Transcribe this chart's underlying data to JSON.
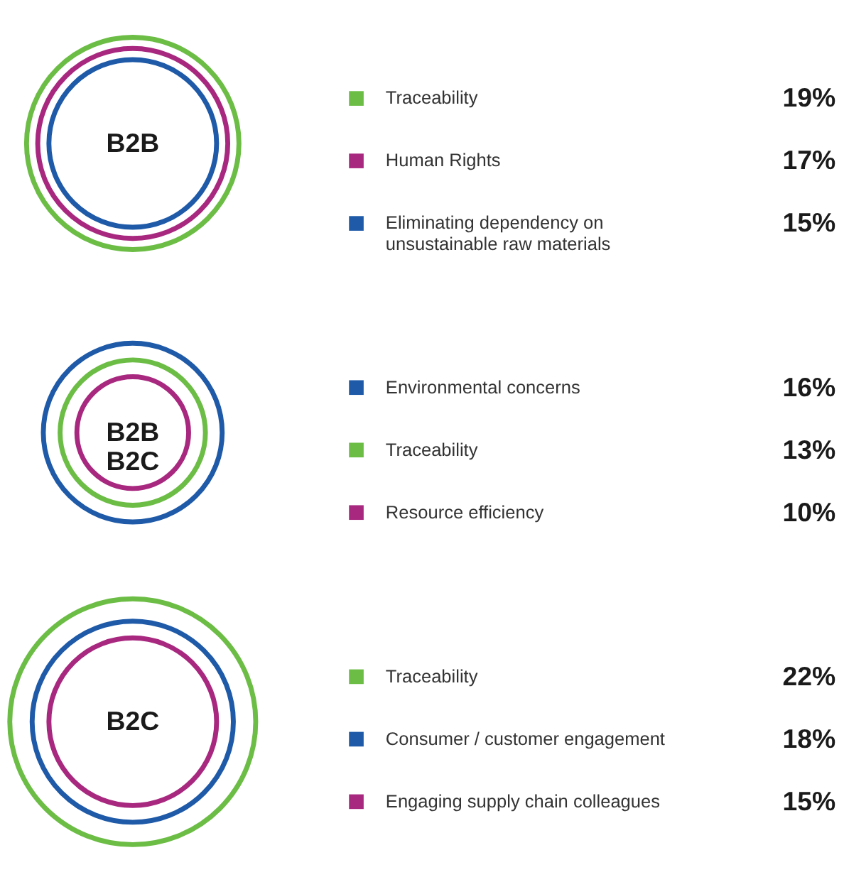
{
  "chart_data": [
    {
      "type": "other",
      "title": "B2B",
      "categories": [
        "Traceability",
        "Human Rights",
        "Eliminating dependency on\nunsustainable raw materials"
      ],
      "values": [
        19,
        17,
        15
      ],
      "value_labels": [
        "19%",
        "17%",
        "15%"
      ],
      "colors": [
        "#6cbd45",
        "#a8287f",
        "#1e5aa8"
      ]
    },
    {
      "type": "other",
      "title": "B2B\nB2C",
      "categories": [
        "Environmental concerns",
        "Traceability",
        "Resource efficiency"
      ],
      "values": [
        16,
        13,
        10
      ],
      "value_labels": [
        "16%",
        "13%",
        "10%"
      ],
      "colors": [
        "#1e5aa8",
        "#6cbd45",
        "#a8287f"
      ]
    },
    {
      "type": "other",
      "title": "B2C",
      "categories": [
        "Traceability",
        "Consumer / customer engagement",
        "Engaging supply chain colleagues"
      ],
      "values": [
        22,
        18,
        15
      ],
      "value_labels": [
        "22%",
        "18%",
        "15%"
      ],
      "colors": [
        "#6cbd45",
        "#1e5aa8",
        "#a8287f"
      ]
    }
  ]
}
